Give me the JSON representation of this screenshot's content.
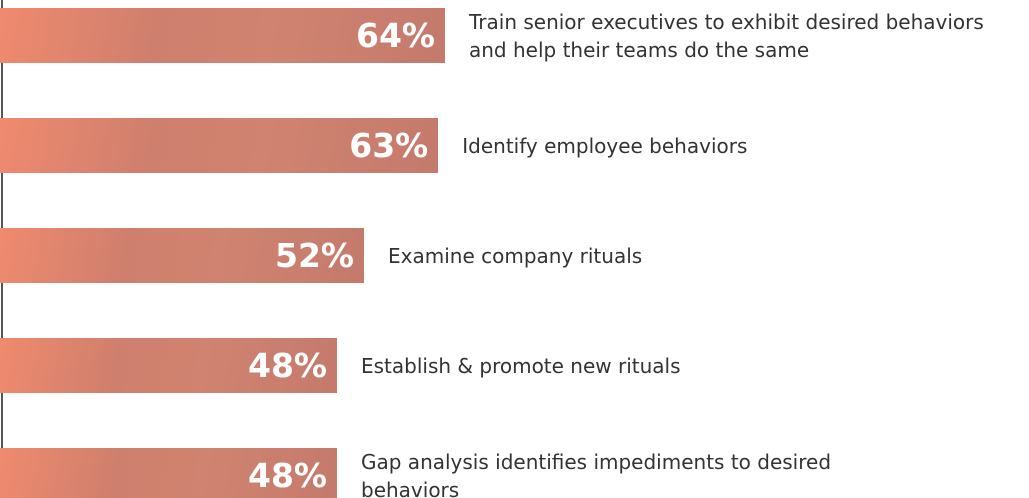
{
  "chart_data": {
    "type": "bar",
    "orientation": "horizontal",
    "categories": [
      "Train senior executives to exhibit desired behaviors and help their teams do the same",
      "Identify employee behaviors",
      "Examine company rituals",
      "Establish & promote new rituals",
      "Gap analysis identifies impediments to desired behaviors"
    ],
    "values": [
      64,
      63,
      52,
      48,
      48
    ],
    "value_labels": [
      "64%",
      "63%",
      "52%",
      "48%",
      "48%"
    ],
    "color": "#cf7f6d"
  }
}
